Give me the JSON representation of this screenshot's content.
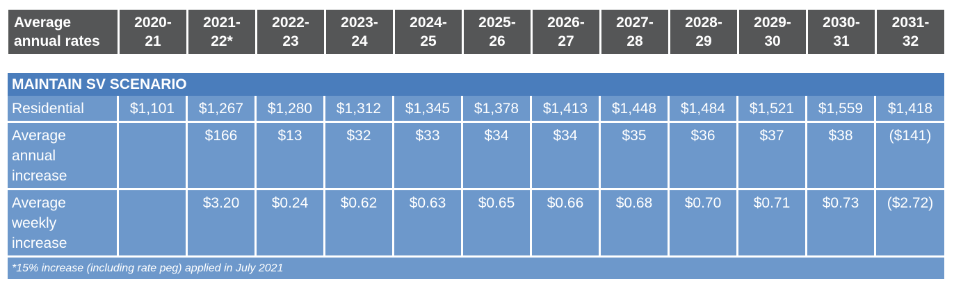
{
  "header": {
    "label_line1": "Average",
    "label_line2": "annual rates",
    "years": [
      {
        "l1": "2020-",
        "l2": "21"
      },
      {
        "l1": "2021-",
        "l2": "22*"
      },
      {
        "l1": "2022-",
        "l2": "23"
      },
      {
        "l1": "2023-",
        "l2": "24"
      },
      {
        "l1": "2024-",
        "l2": "25"
      },
      {
        "l1": "2025-",
        "l2": "26"
      },
      {
        "l1": "2026-",
        "l2": "27"
      },
      {
        "l1": "2027-",
        "l2": "28"
      },
      {
        "l1": "2028-",
        "l2": "29"
      },
      {
        "l1": "2029-",
        "l2": "30"
      },
      {
        "l1": "2030-",
        "l2": "31"
      },
      {
        "l1": "2031-",
        "l2": "32"
      }
    ]
  },
  "scenario": {
    "title": "MAINTAIN SV SCENARIO",
    "rows": [
      {
        "label": [
          "Residential"
        ],
        "values": [
          "$1,101",
          "$1,267",
          "$1,280",
          "$1,312",
          "$1,345",
          "$1,378",
          "$1,413",
          "$1,448",
          "$1,484",
          "$1,521",
          "$1,559",
          "$1,418"
        ]
      },
      {
        "label": [
          "Average",
          "annual",
          "increase"
        ],
        "values": [
          "",
          "$166",
          "$13",
          "$32",
          "$33",
          "$34",
          "$34",
          "$35",
          "$36",
          "$37",
          "$38",
          "($141)"
        ]
      },
      {
        "label": [
          "Average",
          "weekly",
          "increase"
        ],
        "values": [
          "",
          "$3.20",
          "$0.24",
          "$0.62",
          "$0.63",
          "$0.65",
          "$0.66",
          "$0.68",
          "$0.70",
          "$0.71",
          "$0.73",
          "($2.72)"
        ]
      }
    ],
    "footnote": "*15% increase (including rate peg) applied in July 2021"
  },
  "colors": {
    "header_bg": "#555657",
    "title_bg": "#4a7dbc",
    "cell_bg": "#6d98cb",
    "text": "#ffffff"
  }
}
